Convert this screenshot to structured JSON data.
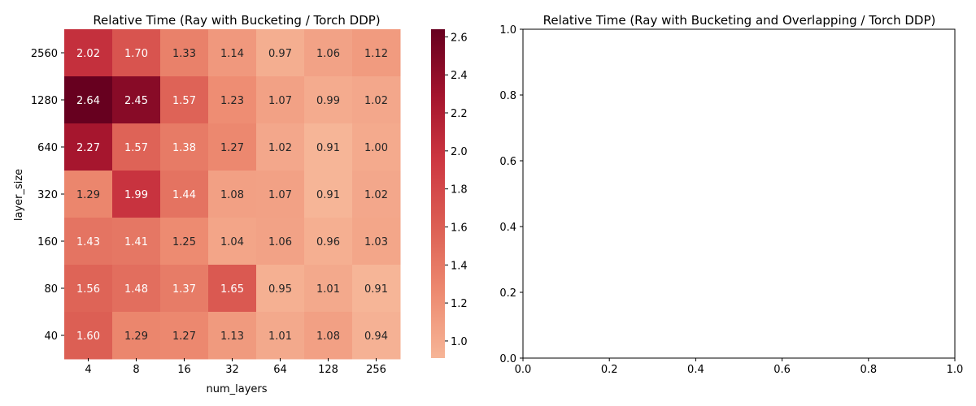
{
  "chart_data": [
    {
      "type": "heatmap",
      "title": "Relative Time (Ray with Bucketing / Torch DDP)",
      "xlabel": "num_layers",
      "ylabel": "layer_size",
      "x_categories": [
        "4",
        "8",
        "16",
        "32",
        "64",
        "128",
        "256"
      ],
      "y_categories": [
        "2560",
        "1280",
        "640",
        "320",
        "160",
        "80",
        "40"
      ],
      "values": [
        [
          2.02,
          1.7,
          1.33,
          1.14,
          0.97,
          1.06,
          1.12
        ],
        [
          2.64,
          2.45,
          1.57,
          1.23,
          1.07,
          0.99,
          1.02
        ],
        [
          2.27,
          1.57,
          1.38,
          1.27,
          1.02,
          0.91,
          1.0
        ],
        [
          1.29,
          1.99,
          1.44,
          1.08,
          1.07,
          0.91,
          1.02
        ],
        [
          1.43,
          1.41,
          1.25,
          1.04,
          1.06,
          0.96,
          1.03
        ],
        [
          1.56,
          1.48,
          1.37,
          1.65,
          0.95,
          1.01,
          0.91
        ],
        [
          1.6,
          1.29,
          1.27,
          1.13,
          1.01,
          1.08,
          0.94
        ]
      ],
      "colorbar": {
        "min": 0.91,
        "max": 2.64,
        "ticks": [
          "1.0",
          "1.2",
          "1.4",
          "1.6",
          "1.8",
          "2.0",
          "2.2",
          "2.4",
          "2.6"
        ],
        "colormap": "reds (light salmon to dark red)"
      }
    },
    {
      "type": "line",
      "title": "Relative Time (Ray with Bucketing and Overlapping / Torch DDP)",
      "xlim": [
        0.0,
        1.0
      ],
      "ylim": [
        0.0,
        1.0
      ],
      "x_ticks": [
        "0.0",
        "0.2",
        "0.4",
        "0.6",
        "0.8",
        "1.0"
      ],
      "y_ticks": [
        "0.0",
        "0.2",
        "0.4",
        "0.6",
        "0.8",
        "1.0"
      ],
      "series": []
    }
  ]
}
